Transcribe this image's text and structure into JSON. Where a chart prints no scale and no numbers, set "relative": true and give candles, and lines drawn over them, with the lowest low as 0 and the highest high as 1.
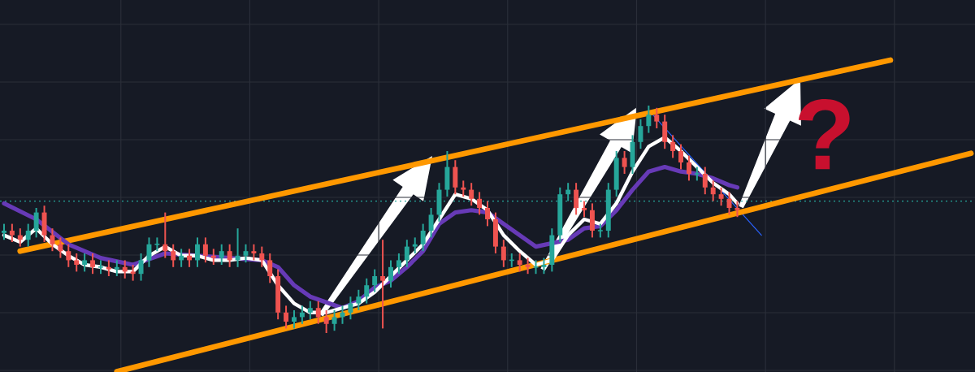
{
  "chart_data": {
    "type": "candlestick",
    "relative": true,
    "grid": true,
    "categories": [
      null,
      null,
      null,
      null,
      null,
      null,
      null,
      null,
      null,
      null,
      null,
      null,
      null,
      null,
      null,
      null,
      null,
      null,
      null,
      null,
      null,
      null,
      null,
      null,
      null,
      null,
      null,
      null,
      null,
      null,
      null,
      null,
      null,
      null,
      null,
      null,
      null,
      null,
      null,
      null,
      null,
      null,
      null,
      null,
      null,
      null,
      null,
      null,
      null,
      null,
      null,
      null,
      null,
      null,
      null,
      null,
      null,
      null,
      null,
      null,
      null,
      null,
      null,
      null,
      null,
      null,
      null,
      null,
      null,
      null,
      null,
      null,
      null,
      null,
      null,
      null,
      null,
      null,
      null,
      null,
      null,
      null,
      null,
      null,
      null,
      null,
      null,
      null,
      null,
      null,
      null,
      null,
      null,
      null,
      null,
      null,
      null,
      null,
      null,
      null,
      null,
      null,
      null,
      null,
      null,
      null,
      null,
      null,
      null,
      null,
      null,
      null,
      null,
      null,
      null,
      null,
      null,
      null,
      null,
      null,
      null
    ],
    "ohlc": [
      [
        0.44,
        0.48,
        0.41,
        0.45
      ],
      [
        0.45,
        0.48,
        0.4,
        0.43
      ],
      [
        0.43,
        0.46,
        0.38,
        0.41
      ],
      [
        0.41,
        0.48,
        0.38,
        0.45
      ],
      [
        0.45,
        0.55,
        0.42,
        0.53
      ],
      [
        0.53,
        0.56,
        0.4,
        0.43
      ],
      [
        0.43,
        0.46,
        0.36,
        0.39
      ],
      [
        0.39,
        0.42,
        0.33,
        0.36
      ],
      [
        0.36,
        0.39,
        0.29,
        0.32
      ],
      [
        0.32,
        0.35,
        0.27,
        0.3
      ],
      [
        0.3,
        0.35,
        0.27,
        0.32
      ],
      [
        0.32,
        0.35,
        0.26,
        0.29
      ],
      [
        0.29,
        0.32,
        0.26,
        0.29
      ],
      [
        0.29,
        0.32,
        0.25,
        0.28
      ],
      [
        0.28,
        0.32,
        0.25,
        0.29
      ],
      [
        0.29,
        0.32,
        0.24,
        0.27
      ],
      [
        0.27,
        0.3,
        0.23,
        0.26
      ],
      [
        0.26,
        0.35,
        0.23,
        0.32
      ],
      [
        0.32,
        0.42,
        0.29,
        0.39
      ],
      [
        0.39,
        0.42,
        0.36,
        0.39
      ],
      [
        0.39,
        0.53,
        0.33,
        0.36
      ],
      [
        0.36,
        0.39,
        0.29,
        0.32
      ],
      [
        0.32,
        0.37,
        0.29,
        0.34
      ],
      [
        0.34,
        0.37,
        0.29,
        0.32
      ],
      [
        0.32,
        0.42,
        0.29,
        0.39
      ],
      [
        0.39,
        0.42,
        0.31,
        0.34
      ],
      [
        0.34,
        0.37,
        0.3,
        0.33
      ],
      [
        0.33,
        0.39,
        0.3,
        0.36
      ],
      [
        0.36,
        0.39,
        0.29,
        0.32
      ],
      [
        0.32,
        0.46,
        0.29,
        0.34
      ],
      [
        0.34,
        0.39,
        0.31,
        0.36
      ],
      [
        0.36,
        0.39,
        0.32,
        0.35
      ],
      [
        0.35,
        0.38,
        0.29,
        0.32
      ],
      [
        0.32,
        0.35,
        0.22,
        0.25
      ],
      [
        0.25,
        0.28,
        0.06,
        0.09
      ],
      [
        0.09,
        0.12,
        0.02,
        0.05
      ],
      [
        0.05,
        0.1,
        0.02,
        0.07
      ],
      [
        0.07,
        0.12,
        0.04,
        0.09
      ],
      [
        0.09,
        0.14,
        0.06,
        0.11
      ],
      [
        0.11,
        0.14,
        0.04,
        0.07
      ],
      [
        0.07,
        0.1,
        0.0,
        0.04
      ],
      [
        0.04,
        0.1,
        0.01,
        0.07
      ],
      [
        0.07,
        0.12,
        0.04,
        0.09
      ],
      [
        0.09,
        0.16,
        0.06,
        0.13
      ],
      [
        0.13,
        0.19,
        0.1,
        0.16
      ],
      [
        0.16,
        0.24,
        0.13,
        0.21
      ],
      [
        0.21,
        0.28,
        0.18,
        0.25
      ],
      [
        0.25,
        0.41,
        0.02,
        0.23
      ],
      [
        0.23,
        0.32,
        0.2,
        0.29
      ],
      [
        0.29,
        0.35,
        0.26,
        0.32
      ],
      [
        0.32,
        0.41,
        0.29,
        0.38
      ],
      [
        0.38,
        0.42,
        0.35,
        0.39
      ],
      [
        0.39,
        0.48,
        0.36,
        0.45
      ],
      [
        0.45,
        0.55,
        0.42,
        0.52
      ],
      [
        0.52,
        0.66,
        0.49,
        0.63
      ],
      [
        0.63,
        0.8,
        0.6,
        0.73
      ],
      [
        0.73,
        0.76,
        0.61,
        0.64
      ],
      [
        0.64,
        0.67,
        0.6,
        0.63
      ],
      [
        0.63,
        0.66,
        0.56,
        0.59
      ],
      [
        0.59,
        0.62,
        0.52,
        0.55
      ],
      [
        0.55,
        0.58,
        0.47,
        0.5
      ],
      [
        0.5,
        0.53,
        0.35,
        0.38
      ],
      [
        0.38,
        0.41,
        0.29,
        0.32
      ],
      [
        0.32,
        0.35,
        0.29,
        0.32
      ],
      [
        0.32,
        0.35,
        0.27,
        0.3
      ],
      [
        0.3,
        0.33,
        0.26,
        0.29
      ],
      [
        0.29,
        0.32,
        0.26,
        0.29
      ],
      [
        0.29,
        0.33,
        0.26,
        0.3
      ],
      [
        0.3,
        0.46,
        0.27,
        0.43
      ],
      [
        0.43,
        0.64,
        0.4,
        0.61
      ],
      [
        0.61,
        0.66,
        0.58,
        0.63
      ],
      [
        0.63,
        0.66,
        0.52,
        0.55
      ],
      [
        0.55,
        0.58,
        0.51,
        0.54
      ],
      [
        0.54,
        0.57,
        0.42,
        0.45
      ],
      [
        0.45,
        0.48,
        0.42,
        0.45
      ],
      [
        0.45,
        0.66,
        0.42,
        0.63
      ],
      [
        0.63,
        0.8,
        0.6,
        0.77
      ],
      [
        0.77,
        0.8,
        0.7,
        0.73
      ],
      [
        0.73,
        0.87,
        0.7,
        0.84
      ],
      [
        0.84,
        0.94,
        0.81,
        0.91
      ],
      [
        0.91,
        1.0,
        0.88,
        0.96
      ],
      [
        0.96,
        0.99,
        0.9,
        0.93
      ],
      [
        0.93,
        0.96,
        0.81,
        0.84
      ],
      [
        0.84,
        0.87,
        0.77,
        0.8
      ],
      [
        0.8,
        0.83,
        0.72,
        0.75
      ],
      [
        0.75,
        0.78,
        0.67,
        0.7
      ],
      [
        0.7,
        0.73,
        0.67,
        0.7
      ],
      [
        0.7,
        0.73,
        0.61,
        0.64
      ],
      [
        0.64,
        0.67,
        0.58,
        0.61
      ],
      [
        0.61,
        0.64,
        0.56,
        0.59
      ],
      [
        0.59,
        0.62,
        0.52,
        0.55
      ],
      [
        0.55,
        0.58,
        0.51,
        0.54
      ],
      null,
      null,
      null,
      null,
      null,
      null,
      null,
      null,
      null,
      null,
      null,
      null,
      null,
      null,
      null,
      null,
      null,
      null,
      null,
      null,
      null,
      null,
      null,
      null,
      null,
      null,
      null,
      null,
      null
    ],
    "colors": [
      "#26a69a",
      "#ef5350",
      "#ef5350",
      "#26a69a",
      "#26a69a",
      "#ef5350",
      "#ef5350",
      "#ef5350",
      "#ef5350",
      "#ef5350",
      "#26a69a",
      "#ef5350",
      "#26a69a",
      "#ef5350",
      "#26a69a",
      "#ef5350",
      "#ef5350",
      "#26a69a",
      "#26a69a",
      "#26a69a",
      "#ef5350",
      "#ef5350",
      "#26a69a",
      "#ef5350",
      "#26a69a",
      "#ef5350",
      "#ef5350",
      "#26a69a",
      "#ef5350",
      "#26a69a",
      "#26a69a",
      "#ef5350",
      "#ef5350",
      "#ef5350",
      "#ef5350",
      "#ef5350",
      "#26a69a",
      "#26a69a",
      "#26a69a",
      "#ef5350",
      "#ef5350",
      "#26a69a",
      "#26a69a",
      "#26a69a",
      "#26a69a",
      "#26a69a",
      "#26a69a",
      "#ef5350",
      "#26a69a",
      "#26a69a",
      "#26a69a",
      "#26a69a",
      "#26a69a",
      "#26a69a",
      "#26a69a",
      "#26a69a",
      "#ef5350",
      "#ef5350",
      "#ef5350",
      "#ef5350",
      "#ef5350",
      "#ef5350",
      "#ef5350",
      "#26a69a",
      "#ef5350",
      "#ef5350",
      "#26a69a",
      "#26a69a",
      "#26a69a",
      "#26a69a",
      "#26a69a",
      "#ef5350",
      "#ef5350",
      "#ef5350",
      "#26a69a",
      "#26a69a",
      "#26a69a",
      "#ef5350",
      "#26a69a",
      "#26a69a",
      "#26a69a",
      "#ef5350",
      "#ef5350",
      "#ef5350",
      "#ef5350",
      "#ef5350",
      "#26a69a",
      "#ef5350",
      "#ef5350",
      "#ef5350",
      "#ef5350",
      "#ef5350",
      null,
      null,
      null,
      null,
      null,
      null,
      null,
      null,
      null,
      null,
      null,
      null,
      null,
      null,
      null,
      null,
      null,
      null,
      null,
      null,
      null,
      null,
      null,
      null,
      null,
      null,
      null,
      null,
      null
    ],
    "series": [
      {
        "type": "line",
        "color": "#ffffff",
        "values": [
          0.43,
          null,
          0.4,
          null,
          0.46,
          null,
          0.39,
          null,
          0.34,
          null,
          0.3,
          null,
          0.29,
          null,
          0.27,
          null,
          0.27,
          null,
          0.34,
          null,
          0.38,
          null,
          0.34,
          null,
          0.34,
          null,
          0.32,
          null,
          0.32,
          null,
          0.33,
          null,
          0.32,
          null,
          0.21,
          null,
          0.13,
          null,
          0.09,
          null,
          0.09,
          null,
          0.11,
          null,
          0.13,
          null,
          0.18,
          null,
          0.25,
          null,
          0.32,
          null,
          0.39,
          null,
          0.5,
          null,
          0.61,
          null,
          0.59,
          null,
          0.54,
          null,
          0.43,
          null,
          0.36,
          null,
          0.3,
          null,
          0.32,
          null,
          0.43,
          null,
          0.5,
          null,
          0.48,
          null,
          0.57,
          null,
          0.71,
          null,
          0.82,
          null,
          0.86,
          null,
          0.8,
          null,
          0.73,
          null,
          0.66,
          null,
          0.61,
          0.57,
          null,
          null,
          null,
          null,
          null,
          null,
          null,
          null,
          null,
          null,
          null,
          null,
          null,
          null,
          null,
          null,
          null,
          null,
          null,
          null,
          null,
          null,
          null,
          null,
          null,
          null,
          null,
          null,
          null
        ]
      },
      {
        "type": "line",
        "color": "#673ab7",
        "values": [
          0.57,
          null,
          null,
          null,
          0.5,
          null,
          null,
          null,
          0.39,
          null,
          null,
          null,
          0.33,
          null,
          null,
          null,
          0.3,
          null,
          null,
          null,
          0.35,
          null,
          null,
          null,
          0.34,
          null,
          null,
          null,
          0.33,
          null,
          null,
          null,
          0.32,
          null,
          0.29,
          null,
          0.21,
          null,
          0.16,
          null,
          null,
          null,
          0.11,
          null,
          0.14,
          null,
          0.2,
          null,
          0.23,
          null,
          0.29,
          null,
          0.36,
          null,
          0.48,
          null,
          0.53,
          null,
          0.54,
          null,
          0.53,
          null,
          0.48,
          null,
          0.43,
          null,
          0.38,
          null,
          null,
          null,
          0.41,
          null,
          0.46,
          null,
          0.47,
          null,
          0.54,
          null,
          0.63,
          null,
          0.71,
          null,
          0.73,
          null,
          0.71,
          null,
          0.7,
          null,
          0.68,
          null,
          0.65,
          0.64,
          null,
          null,
          null,
          null,
          null,
          null,
          null,
          null,
          null,
          null,
          null,
          null,
          null,
          null,
          null,
          null,
          null,
          null,
          null,
          null,
          null,
          null,
          null,
          null,
          null,
          null,
          null,
          null,
          null
        ]
      },
      {
        "type": "line",
        "color": "#ff9800",
        "values": [
          null,
          null,
          0.36,
          null,
          null,
          null,
          null,
          null,
          null,
          null,
          null,
          null,
          null,
          null,
          null,
          null,
          null,
          null,
          null,
          null,
          null,
          null,
          null,
          null,
          null,
          null,
          null,
          null,
          null,
          null,
          null,
          null,
          null,
          null,
          null,
          null,
          null,
          null,
          null,
          null,
          null,
          null,
          null,
          null,
          null,
          null,
          null,
          null,
          null,
          null,
          null,
          null,
          null,
          null,
          null,
          null,
          null,
          null,
          null,
          null,
          null,
          null,
          null,
          null,
          null,
          null,
          null,
          null,
          null,
          null,
          null,
          null,
          null,
          null,
          null,
          null,
          null,
          null,
          null,
          null,
          null,
          null,
          null,
          null,
          null,
          null,
          null,
          null,
          null,
          null,
          null,
          null,
          null,
          null,
          null,
          null,
          null,
          null,
          null,
          null,
          null,
          null,
          null,
          null,
          null,
          null,
          null,
          null,
          null,
          null,
          1.2,
          null,
          null,
          null,
          null,
          null,
          null,
          null,
          null,
          null,
          null
        ]
      },
      {
        "type": "line",
        "color": "#ff9800",
        "values": [
          null,
          null,
          null,
          null,
          null,
          null,
          null,
          null,
          null,
          null,
          null,
          null,
          null,
          null,
          -0.17,
          null,
          null,
          null,
          null,
          null,
          null,
          null,
          null,
          null,
          null,
          null,
          null,
          null,
          null,
          null,
          null,
          null,
          null,
          null,
          null,
          null,
          null,
          null,
          null,
          null,
          null,
          null,
          null,
          null,
          null,
          null,
          null,
          null,
          null,
          null,
          null,
          null,
          null,
          null,
          null,
          null,
          null,
          null,
          null,
          null,
          null,
          null,
          null,
          null,
          null,
          null,
          null,
          null,
          null,
          null,
          null,
          null,
          null,
          null,
          null,
          null,
          null,
          null,
          null,
          null,
          null,
          null,
          null,
          null,
          null,
          null,
          null,
          null,
          null,
          null,
          null,
          null,
          null,
          null,
          null,
          null,
          null,
          null,
          null,
          null,
          null,
          null,
          null,
          null,
          null,
          null,
          null,
          null,
          null,
          null,
          null,
          null,
          null,
          null,
          null,
          null,
          null,
          null,
          null,
          null,
          0.79
        ]
      },
      {
        "type": "line",
        "color": "#2962ff",
        "values": [
          null,
          null,
          null,
          null,
          null,
          null,
          null,
          null,
          null,
          null,
          null,
          null,
          null,
          null,
          null,
          null,
          null,
          null,
          null,
          null,
          null,
          null,
          null,
          null,
          null,
          null,
          null,
          null,
          null,
          null,
          null,
          null,
          null,
          null,
          null,
          null,
          null,
          null,
          null,
          null,
          null,
          null,
          null,
          null,
          null,
          null,
          null,
          null,
          null,
          null,
          null,
          null,
          null,
          null,
          null,
          null,
          null,
          null,
          null,
          null,
          null,
          null,
          null,
          null,
          null,
          null,
          null,
          null,
          null,
          null,
          null,
          null,
          null,
          null,
          null,
          null,
          null,
          null,
          null,
          null,
          0.98,
          null,
          null,
          null,
          null,
          null,
          null,
          null,
          null,
          null,
          null,
          null,
          null,
          null,
          0.43,
          null,
          null,
          null,
          null,
          null,
          null,
          null,
          null,
          null,
          null,
          null,
          null,
          null,
          null,
          null,
          null,
          null,
          null,
          null,
          null,
          null,
          null,
          null,
          null,
          null,
          null
        ]
      }
    ],
    "ref_lines": [
      {
        "axis": "y",
        "value": 0.58,
        "color": "#26a69a",
        "line_style": "dotted"
      }
    ],
    "annotations": [
      "?"
    ]
  }
}
